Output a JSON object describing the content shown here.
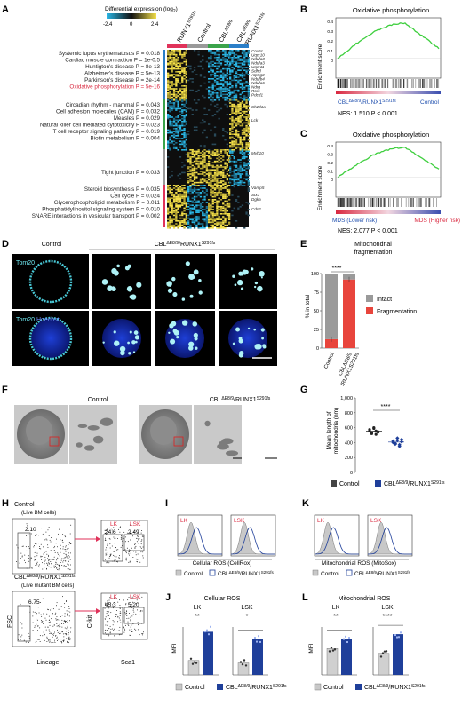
{
  "panels": {
    "A": {
      "letter": "A",
      "scale_label": "Differential expression (log",
      "scale_sub": "2",
      "scale_close": ")",
      "scale_ticks": [
        "-2.4",
        "0",
        "2.4"
      ],
      "columns": [
        "RUNX1",
        "Control",
        "CBL",
        "CBL"
      ],
      "col_sup": [
        "S291fs",
        "",
        "ΔE8/9",
        "ΔE8/9"
      ],
      "col_sub2": "/RUNX1",
      "col_sup2": "S291fs",
      "col_colors": [
        "#e0325a",
        "#999999",
        "#3aa34a",
        "#2a7ec8"
      ],
      "pathways": [
        {
          "text": "Systemic lupus erythematosus P = 0.018",
          "red": false
        },
        {
          "text": "Cardiac muscle contraction P = 1e-0.5",
          "red": false
        },
        {
          "text": "Huntigton's disease P = 8e-13",
          "red": false
        },
        {
          "text": "Alzheimer's disease P = 5e-13",
          "red": false
        },
        {
          "text": "Parkinson's disease P = 2e-14",
          "red": false
        },
        {
          "text": "Oxidative phosphorylation P = 5e-16",
          "red": true
        },
        {
          "text": "Circadian rhythm - mammal P = 0.043",
          "red": false
        },
        {
          "text": "Cell adhesion molecules (CAM) P = 0.032",
          "red": false
        },
        {
          "text": "Measles P = 0.029",
          "red": false
        },
        {
          "text": "Natural killer cell mediated cytotoxicity P = 0.023",
          "red": false
        },
        {
          "text": "T cell receptor signaling pathway P = 0.019",
          "red": false
        },
        {
          "text": "Biotin metabolism P = 0.004",
          "red": false
        },
        {
          "text": "Tight junction P = 0.033",
          "red": false
        },
        {
          "text": "Steroid biosynthesis P = 0.035",
          "red": false
        },
        {
          "text": "Cell cycle P = 0.024",
          "red": false
        },
        {
          "text": "Glycerophospholipid metabolism P = 0.011",
          "red": false
        },
        {
          "text": "Phosphatidylinositol signaling system P = 0.010",
          "red": false
        },
        {
          "text": "SNARE interactions in vesicular transport P = 0.002",
          "red": false
        }
      ],
      "genes": [
        "Cox6c",
        "Uqcr10",
        "Ndufa3",
        "Ndufa3",
        "Uqcr11",
        "Sdhd",
        "Atp5g3",
        "Ndufb4",
        "Ndufa6",
        "Ndrg",
        "Rorc",
        "Pdcd1",
        "Sh2d1a",
        "Lck",
        "Myh10",
        "Vamp5",
        "Stx3",
        "Dgka",
        "Cds2"
      ],
      "cluster_colors": [
        "#2a7ec8",
        "#3aa34a",
        "#999999",
        "#e0325a"
      ]
    },
    "B": {
      "letter": "B",
      "title": "Oxidative phosphorylation",
      "ylabel": "Enrichment score",
      "y_ticks": [
        "0.4",
        "0.3",
        "0.2",
        "0.1",
        "0"
      ],
      "left_label_main": "CBL",
      "left_label_sup": "ΔE8/9",
      "left_label_mid": "/RUNX1",
      "left_label_sup2": "S291fs",
      "right_label": "Control",
      "stats": "NES: 1.510    P < 0.001"
    },
    "C": {
      "letter": "C",
      "title": "Oxidative phosphorylation",
      "ylabel": "Enrichment score",
      "y_ticks": [
        "0.4",
        "0.3",
        "0.2",
        "0.1",
        "0"
      ],
      "left_label": "MDS (Lower risk)",
      "right_label": "MDS (Higher risk)",
      "stats": "NES: 2.077    P < 0.001"
    },
    "D": {
      "letter": "D",
      "col_control": "Control",
      "col_mut": "CBL",
      "col_mut_sup": "ΔE8/9",
      "col_mut_mid": "/RUNX1",
      "col_mut_sup2": "S291fs",
      "row1_label": "Tom20",
      "row2_label_a": "Tom20",
      "row2_label_b": "Hoechst"
    },
    "E": {
      "letter": "E",
      "title_line1": "Mitochondrial",
      "title_line2": "fragmentation",
      "ylabel": "% in total",
      "y_ticks": [
        "100",
        "75",
        "50",
        "25",
        "0"
      ],
      "sig": "****",
      "x_labels": [
        "Control",
        "CBL"
      ],
      "x_sub": "ΔE8/9",
      "x_sub2": "/RUNX1",
      "x_sub3": "S291fs",
      "legend": [
        {
          "label": "Intact",
          "color": "#9a9a9a"
        },
        {
          "label": "Fragmentation",
          "color": "#e8453c"
        }
      ]
    },
    "F": {
      "letter": "F",
      "label_control": "Control",
      "label_mut": "CBL",
      "label_mut_sup": "ΔE8/9",
      "label_mut_mid": "/RUNX1",
      "label_mut_sup2": "S291fs"
    },
    "G": {
      "letter": "G",
      "ylabel_line1": "Mean length of",
      "ylabel_line2": "mitochondria (nm)",
      "y_ticks": [
        "1,000",
        "800",
        "600",
        "400",
        "200",
        "0"
      ],
      "sig": "****",
      "legend_control": "Control",
      "legend_mut": "CBL",
      "legend_mut_sup": "ΔE8/9",
      "legend_mut_mid": "/RUNX1",
      "legend_mut_sup2": "S291fs"
    },
    "H": {
      "letter": "H",
      "ctrl_title": "Control",
      "ctrl_gate": "(Live BM cells)",
      "ctrl_pct": "2.10",
      "ctrl_lk": "LK",
      "ctrl_lsk": "LSK",
      "ctrl_lk_pct": "24.6",
      "ctrl_lsk_pct": "2.49",
      "mut_title": "CBL",
      "mut_sup": "ΔE8/9",
      "mut_mid": "/RUNX1",
      "mut_sup2": "S291fs",
      "mut_gate": "(Live mutant BM cells)",
      "mut_pct": "6.75",
      "mut_lk_pct": "45.3",
      "mut_lsk_pct": "5.20",
      "xaxis_left": "Lineage",
      "yaxis_left": "FSC",
      "xaxis_right": "Sca1",
      "yaxis_right": "C-kit"
    },
    "I": {
      "letter": "I",
      "lk": "LK",
      "lsk": "LSK",
      "xlabel": "Cellular ROS (CellRox)"
    },
    "K": {
      "letter": "K",
      "lk": "LK",
      "lsk": "LSK",
      "xlabel": "Mitochondrial ROS (MitoSox)"
    },
    "J": {
      "letter": "J",
      "title": "Cellular ROS",
      "lk": "LK",
      "lsk": "LSK",
      "ylabel": "MFI",
      "sig_lk": "**",
      "sig_lsk": "*"
    },
    "L": {
      "letter": "L",
      "title": "Mitochondrial ROS",
      "lk": "LK",
      "lsk": "LSK",
      "ylabel": "MFI",
      "sig_lk": "**",
      "sig_lsk": "****"
    },
    "legend_IK": {
      "control": "Control",
      "mut": "CBL",
      "mut_sup": "ΔE8/9",
      "mut_mid": "/RUNX1",
      "mut_sup2": "S291fs"
    },
    "legend_JL": {
      "control": "Control",
      "mut": "CBL",
      "mut_sup": "ΔE8/9",
      "mut_mid": "/RUNX1",
      "mut_sup2": "S291fs"
    }
  }
}
